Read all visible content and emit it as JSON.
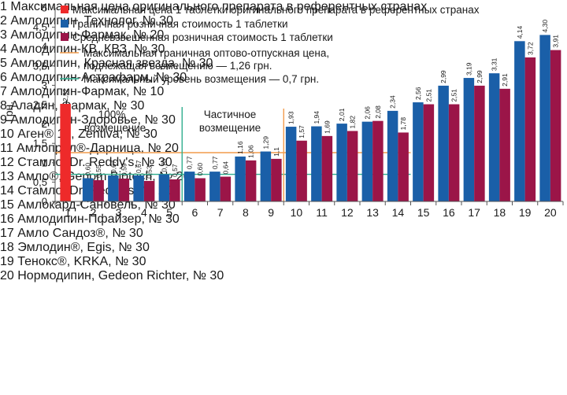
{
  "chart_data": {
    "type": "bar",
    "ylabel": "Грн.",
    "ylim": [
      0,
      5
    ],
    "yticks": [
      "0",
      "0,5",
      "1",
      "1,5",
      "2",
      "2,5",
      "3",
      "3,5",
      "4",
      "4,5",
      "5"
    ],
    "categories": [
      "1",
      "2",
      "3",
      "4",
      "5",
      "6",
      "7",
      "8",
      "9",
      "10",
      "11",
      "12",
      "13",
      "14",
      "15",
      "16",
      "17",
      "18",
      "19",
      "20"
    ],
    "series": [
      {
        "name": "Максимальная цена 1 таблетки оригинального препарата в референтных странах",
        "color": "#ee2a2a",
        "values": [
          2.52,
          null,
          null,
          null,
          null,
          null,
          null,
          null,
          null,
          null,
          null,
          null,
          null,
          null,
          null,
          null,
          null,
          null,
          null,
          null
        ],
        "labels": [
          "2,52",
          "",
          "",
          "",
          "",
          "",
          "",
          "",
          "",
          "",
          "",
          "",
          "",
          "",
          "",
          "",
          "",
          "",
          "",
          ""
        ]
      },
      {
        "name": "Граничная розничная стоимость 1 таблетки",
        "color": "#1a5fa8",
        "values": [
          null,
          0.6,
          0.67,
          0.67,
          0.7,
          0.77,
          0.77,
          1.16,
          1.29,
          1.93,
          1.94,
          2.01,
          2.06,
          2.34,
          2.56,
          2.99,
          3.19,
          3.31,
          4.14,
          4.3
        ],
        "labels": [
          "",
          "0,60",
          "0,67",
          "0,67",
          "0,70",
          "0,77",
          "0,77",
          "1,16",
          "1,29",
          "1,93",
          "1,94",
          "2,01",
          "2,06",
          "2,34",
          "2,56",
          "2,99",
          "3,19",
          "3,31",
          "4,14",
          "4,30"
        ]
      },
      {
        "name": "Средневзвешенная розничная стоимость 1 таблетки",
        "color": "#9b1548",
        "values": [
          null,
          0.55,
          0.59,
          0.53,
          0.57,
          0.6,
          0.64,
          1.06,
          1.1,
          1.57,
          1.69,
          1.82,
          2.08,
          1.78,
          2.51,
          2.51,
          2.99,
          2.91,
          3.72,
          3.91
        ],
        "labels": [
          "",
          "0,55",
          "0,59",
          "0,53",
          "0,57",
          "0,60",
          "0,64",
          "1,06",
          "1,1",
          "1,57",
          "1,69",
          "1,82",
          "2,08",
          "1,78",
          "2,51",
          "2,51",
          "2,99",
          "2,91",
          "3,72",
          "3,91"
        ]
      }
    ],
    "reference_lines": [
      {
        "name": "Максимальная граничная оптово-отпускная цена,",
        "name2": "подлежащая возмещению — 1,26 грн.",
        "value": 1.26,
        "color": "#f29b4c"
      },
      {
        "name": "Максимальный уровень возмещения — 0,7 грн.",
        "value": 0.7,
        "color": "#2fae8f"
      }
    ],
    "zones": [
      {
        "label1": "100%",
        "label2": "возмещение",
        "from": "6",
        "color": "#2fae8f"
      },
      {
        "label1": "Частичное",
        "label2": "возмещение",
        "from": "10",
        "color": "#f29b4c"
      }
    ],
    "legend_position": "top",
    "grid": false
  },
  "notes": {
    "col1": [
      "1 Максимальная цена оригинального препарата в референтных странах",
      "2 Амлодипин, Технолог, № 30",
      "3 Амлодипин-Фармак, № 20",
      "4 Амлодипин-КВ, КВЗ, № 30",
      "5 Амлодипин, Красная звезда, № 30",
      "6 Амлодипин-Астрафарм, № 30",
      "7 Амлодипин-Фармак, № 10",
      "8 Аладин,  Фармак, № 30",
      "9 Амлодипин-Здоровье, № 30",
      "10 Аген® 10, Zentiva, № 30",
      "11 Амлоприл®-Дарница, № 20"
    ],
    "col2": [
      "12 Стамло, Dr. Reddy's, № 30",
      "13 Амло®, Genom Biotech, № 20",
      "14 Стамло, Dr. Reddy's, № 20",
      "15 Амлокард-Сановель, № 30",
      "16 Амлодипин-Пфайзер, № 30",
      "17 Амло Сандоз®, № 30",
      "18 Эмлодин®, Egis, № 30",
      "19 Тенокс®, KRKA, № 30",
      "20 Нормодипин, Gedeon Richter, № 30"
    ]
  }
}
